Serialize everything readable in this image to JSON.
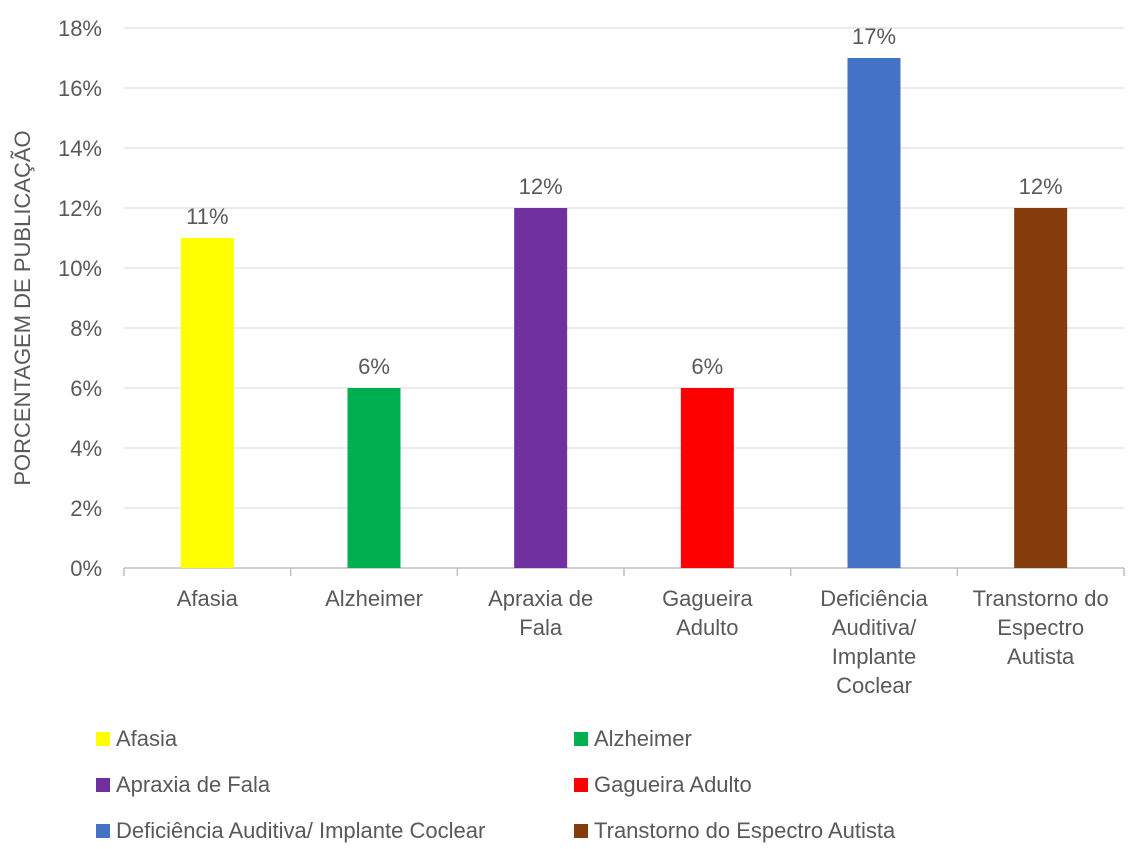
{
  "chart_data": {
    "type": "bar",
    "title": "",
    "xlabel": "",
    "ylabel": "PORCENTAGEM DE PUBLICAÇÃO",
    "ylim": [
      0,
      18
    ],
    "yticks": [
      "0%",
      "2%",
      "4%",
      "6%",
      "8%",
      "10%",
      "12%",
      "14%",
      "16%",
      "18%"
    ],
    "grid": true,
    "legend_position": "bottom",
    "categories": [
      [
        "Afasia"
      ],
      [
        "Alzheimer"
      ],
      [
        "Apraxia de",
        "Fala"
      ],
      [
        "Gagueira",
        "Adulto"
      ],
      [
        "Deficiência",
        "Auditiva/",
        "Implante",
        "Coclear"
      ],
      [
        "Transtorno do",
        "Espectro",
        "Autista"
      ]
    ],
    "values": [
      11,
      6,
      12,
      6,
      17,
      12
    ],
    "data_labels": [
      "11%",
      "6%",
      "12%",
      "6%",
      "17%",
      "12%"
    ],
    "colors": [
      "#FFFF00",
      "#00B050",
      "#7030A0",
      "#FF0000",
      "#4472C4",
      "#843C0C"
    ],
    "legend": [
      "Afasia",
      "Alzheimer",
      "Apraxia de Fala",
      "Gagueira Adulto",
      "Deficiência Auditiva/ Implante Coclear",
      "Transtorno do Espectro Autista"
    ]
  }
}
